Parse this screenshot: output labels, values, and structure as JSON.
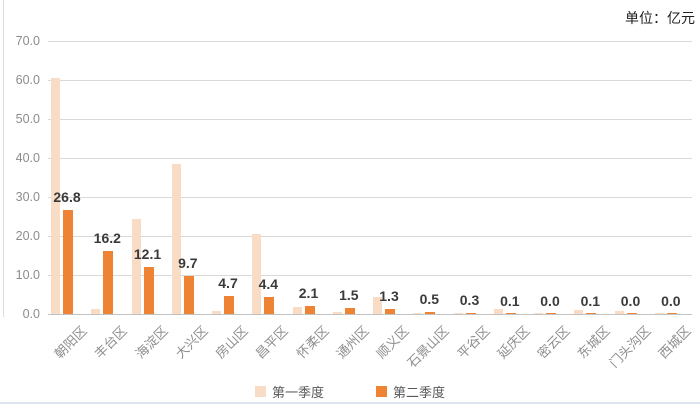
{
  "chart_data": {
    "type": "bar",
    "title": "",
    "unit_label": "单位：亿元",
    "xlabel": "",
    "ylabel": "",
    "categories": [
      "朝阳区",
      "丰台区",
      "海淀区",
      "大兴区",
      "房山区",
      "昌平区",
      "怀柔区",
      "通州区",
      "顺义区",
      "石景山区",
      "平谷区",
      "延庆区",
      "密云区",
      "东城区",
      "门头沟区",
      "西城区"
    ],
    "series": [
      {
        "name": "第一季度",
        "color": "#f8dcc5",
        "data_labels": false,
        "values": [
          60.5,
          1.4,
          24.3,
          38.4,
          0.7,
          20.5,
          1.9,
          0.4,
          4.4,
          0.2,
          0.1,
          1.3,
          0.3,
          1.1,
          0.9,
          0.3
        ]
      },
      {
        "name": "第二季度",
        "color": "#ed8333",
        "data_labels": true,
        "values": [
          26.8,
          16.2,
          12.1,
          9.7,
          4.7,
          4.4,
          2.1,
          1.5,
          1.3,
          0.5,
          0.3,
          0.1,
          0.0,
          0.1,
          0.0,
          0.0
        ]
      }
    ],
    "yticks": [
      70,
      60,
      50,
      40,
      30,
      20,
      10,
      0
    ],
    "ylim": [
      0,
      70
    ],
    "ytick_format": "one_decimal",
    "grid": true,
    "legend_position": "bottom"
  }
}
